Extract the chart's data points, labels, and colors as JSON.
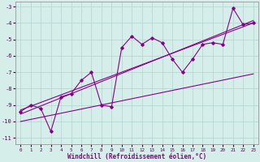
{
  "xlabel": "Windchill (Refroidissement éolien,°C)",
  "bg_color": "#d5eeea",
  "grid_color": "#b8d8d4",
  "line_color": "#880088",
  "xlim": [
    -0.5,
    23.5
  ],
  "ylim": [
    -11.4,
    -2.7
  ],
  "xticks": [
    0,
    1,
    2,
    3,
    4,
    5,
    6,
    7,
    8,
    9,
    10,
    11,
    12,
    13,
    14,
    15,
    16,
    17,
    18,
    19,
    20,
    21,
    22,
    23
  ],
  "yticks": [
    -11,
    -10,
    -9,
    -8,
    -7,
    -6,
    -5,
    -4,
    -3
  ],
  "main_x": [
    0,
    1,
    2,
    3,
    4,
    5,
    6,
    7,
    8,
    9,
    10,
    11,
    12,
    13,
    14,
    15,
    16,
    17,
    18,
    19,
    20,
    21,
    22,
    23
  ],
  "main_y": [
    -9.4,
    -9.0,
    -9.2,
    -10.6,
    -8.5,
    -8.3,
    -7.5,
    -7.0,
    -9.0,
    -9.1,
    -5.5,
    -4.8,
    -5.3,
    -4.9,
    -5.2,
    -6.2,
    -7.0,
    -6.2,
    -5.3,
    -5.2,
    -5.3,
    -3.1,
    -4.1,
    -4.0
  ],
  "line1_x": [
    0,
    23
  ],
  "line1_y": [
    -9.3,
    -4.0
  ],
  "line2_x": [
    0,
    23
  ],
  "line2_y": [
    -9.55,
    -3.85
  ],
  "line3_x": [
    0,
    23
  ],
  "line3_y": [
    -10.0,
    -7.1
  ]
}
